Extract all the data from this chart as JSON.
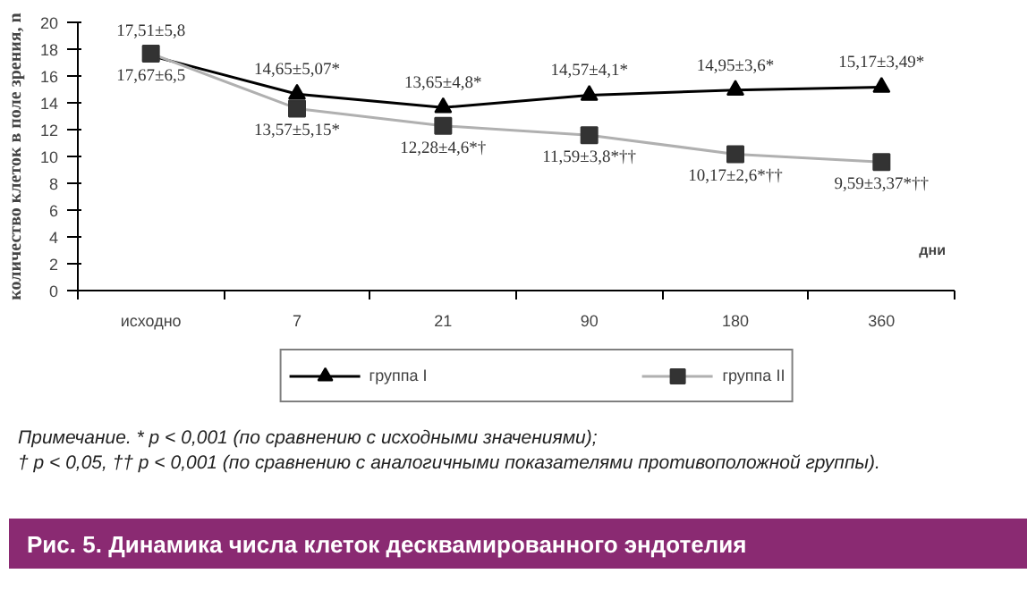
{
  "chart_data": {
    "type": "line",
    "title": "Рис. 5. Динамика числа клеток десквамированного эндотелия",
    "ylabel": "количество клеток в поле зрения, n",
    "xlabel": "дни",
    "categories": [
      "исходно",
      "7",
      "21",
      "90",
      "180",
      "360"
    ],
    "series": [
      {
        "name": "группа I",
        "color": "#000000",
        "marker": "triangle",
        "values": [
          17.51,
          14.65,
          13.65,
          14.57,
          14.95,
          15.17
        ],
        "value_labels": [
          "17,51±5,8",
          "14,65±5,07*",
          "13,65±4,8*",
          "14,57±4,1*",
          "14,95±3,6*",
          "15,17±3,49*"
        ]
      },
      {
        "name": "группа II",
        "color": "#333333",
        "marker": "square",
        "values": [
          17.67,
          13.57,
          12.28,
          11.59,
          10.17,
          9.59
        ],
        "value_labels": [
          "17,67±6,5",
          "13,57±5,15*",
          "12,28±4,6*†",
          "11,59±3,8*††",
          "10,17±2,6*††",
          "9,59±3,37*††"
        ]
      }
    ],
    "ylim": [
      0,
      20
    ],
    "yticks": [
      0,
      2,
      4,
      6,
      8,
      10,
      12,
      14,
      16,
      18,
      20
    ],
    "grid": false,
    "legend": "bottom",
    "annotations": [
      "Примечание. * p < 0,001 (по сравнению с исходными значениями);",
      "† p < 0,05, †† p < 0,001 (по сравнению с аналогичными показателями противоположной группы)."
    ]
  }
}
